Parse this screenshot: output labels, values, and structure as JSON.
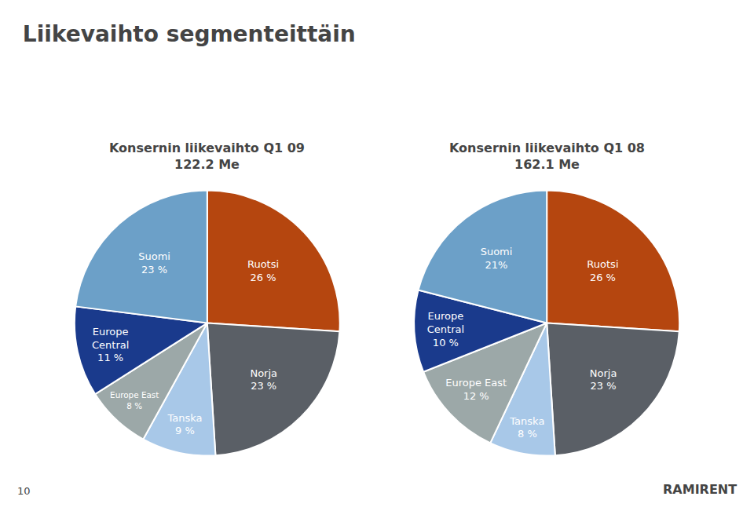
{
  "chart_data": [
    {
      "type": "pie",
      "title": "Liikevaihto segmenteittäin",
      "subtitle": "Konsernin liikevaihto Q1 09\n122.2 Me",
      "categories": [
        "Ruotsi",
        "Norja",
        "Tanska",
        "Europe East",
        "Europe\nCentral",
        "Suomi"
      ],
      "values": [
        26,
        23,
        9,
        8,
        11,
        23
      ],
      "value_labels": [
        "Ruotsi\n26 %",
        "Norja\n23 %",
        "Tanska\n9 %",
        "Europe East\n8 %",
        "Europe\nCentral\n11 %",
        "Suomi\n23 %"
      ],
      "colors": [
        "#b5460f",
        "#5a5f66",
        "#a8c8e8",
        "#9ca8a8",
        "#1a3a8c",
        "#6ca0c8"
      ],
      "data_labels": true,
      "annotations": [
        "10",
        "RAMIRENT"
      ]
    },
    {
      "type": "pie",
      "subtitle": "Konsernin liikevaihto Q1 08\n162.1 Me",
      "categories": [
        "Ruotsi",
        "Norja",
        "Tanska",
        "Europe East",
        "Europe\nCentral",
        "Suomi"
      ],
      "values": [
        26,
        23,
        8,
        12,
        10,
        21
      ],
      "value_labels": [
        "Ruotsi\n26 %",
        "Norja\n23 %",
        "Tanska\n8 %",
        "Europe East\n12 %",
        "Europe\nCentral\n10 %",
        "Suomi\n21%"
      ],
      "colors": [
        "#b5460f",
        "#5a5f66",
        "#a8c8e8",
        "#9ca8a8",
        "#1a3a8c",
        "#6ca0c8"
      ],
      "data_labels": true
    }
  ]
}
